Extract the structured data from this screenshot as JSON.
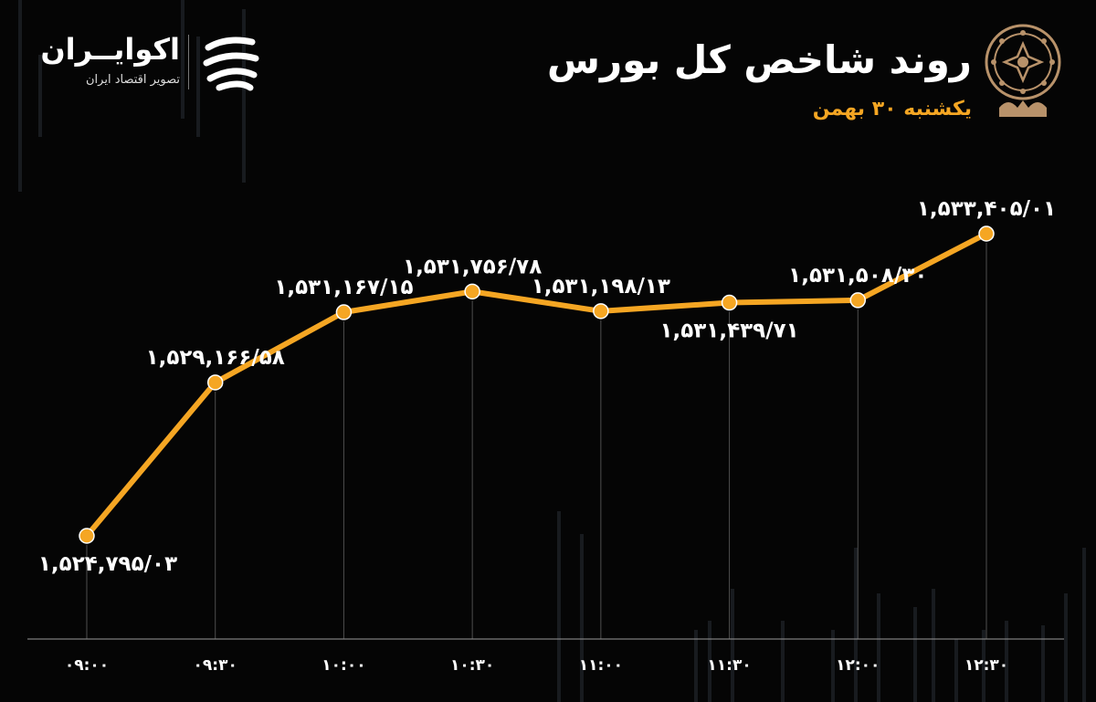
{
  "header": {
    "title": "روند شاخص کل بورس",
    "subtitle": "یکشنبه ۳۰ بهمن"
  },
  "brand": {
    "name": "اکوایــران",
    "tagline": "تصویر اقتصاد ایران"
  },
  "colors": {
    "background": "#050505",
    "line": "#f5a623",
    "marker": "#f5a623",
    "label": "#ffffff",
    "grid": "#8a8a8a",
    "accent": "#f5a623"
  },
  "chart_data": {
    "type": "line",
    "title": "روند شاخص کل بورس",
    "categories": [
      "۰۹:۰۰",
      "۰۹:۳۰",
      "۱۰:۰۰",
      "۱۰:۳۰",
      "۱۱:۰۰",
      "۱۱:۳۰",
      "۱۲:۰۰",
      "۱۲:۳۰"
    ],
    "values": [
      1524795.03,
      1529166.58,
      1531167.15,
      1531756.78,
      1531198.13,
      1531439.71,
      1531508.3,
      1533405.01
    ],
    "data_labels": [
      "۱,۵۲۴,۷۹۵/۰۳",
      "۱,۵۲۹,۱۶۶/۵۸",
      "۱,۵۳۱,۱۶۷/۱۵",
      "۱,۵۳۱,۷۵۶/۷۸",
      "۱,۵۳۱,۱۹۸/۱۳",
      "۱,۵۳۱,۴۳۹/۷۱",
      "۱,۵۳۱,۵۰۸/۳۰",
      "۱,۵۳۳,۴۰۵/۰۱"
    ],
    "label_position": [
      "below",
      "above",
      "above",
      "above",
      "above",
      "below",
      "above",
      "above"
    ],
    "grid": "vertical",
    "legend": "none"
  }
}
